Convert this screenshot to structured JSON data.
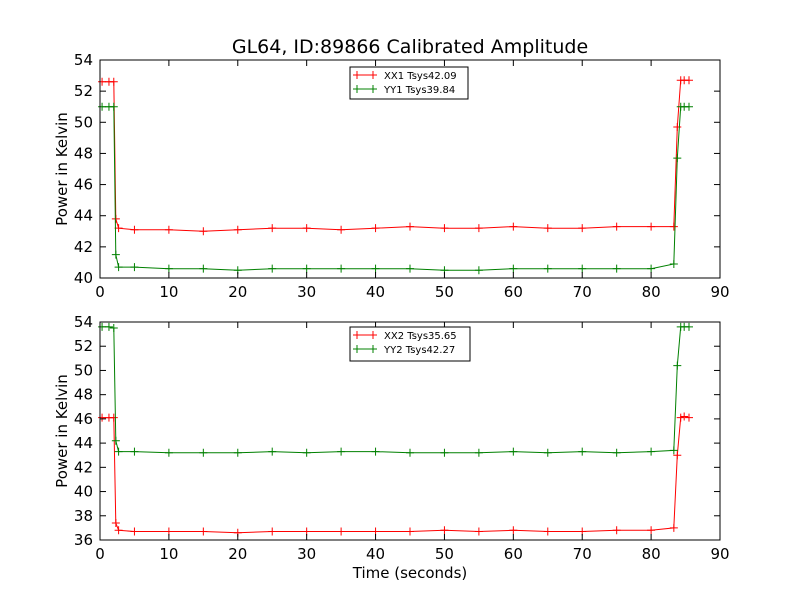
{
  "figure": {
    "title": "GL64, ID:89866 Calibrated Amplitude",
    "xlabel": "Time (seconds)"
  },
  "chart_data": [
    {
      "type": "line",
      "title": "GL64, ID:89866 Calibrated Amplitude",
      "xlabel": "",
      "ylabel": "Power in Kelvin",
      "xlim": [
        0,
        90
      ],
      "ylim": [
        40,
        54
      ],
      "xticks": [
        0,
        10,
        20,
        30,
        40,
        50,
        60,
        70,
        80,
        90
      ],
      "yticks": [
        40,
        42,
        44,
        46,
        48,
        50,
        52,
        54
      ],
      "grid": false,
      "legend_position": "top-center",
      "series": [
        {
          "name": "XX1 Tsys42.09",
          "color": "#ff0000",
          "marker": "plus",
          "x": [
            0.3,
            1.3,
            2.0,
            2.3,
            2.7,
            5,
            10,
            15,
            20,
            25,
            30,
            35,
            40,
            45,
            50,
            55,
            60,
            65,
            70,
            75,
            80,
            83.3,
            83.8,
            84.3,
            84.8,
            85.5
          ],
          "y": [
            52.6,
            52.6,
            52.6,
            43.8,
            43.2,
            43.1,
            43.1,
            43.0,
            43.1,
            43.2,
            43.2,
            43.1,
            43.2,
            43.3,
            43.2,
            43.2,
            43.3,
            43.2,
            43.2,
            43.3,
            43.3,
            43.3,
            49.7,
            52.7,
            52.7,
            52.7
          ]
        },
        {
          "name": "YY1 Tsys39.84",
          "color": "#008000",
          "marker": "plus",
          "x": [
            0.3,
            1.3,
            2.0,
            2.3,
            2.7,
            5,
            10,
            15,
            20,
            25,
            30,
            35,
            40,
            45,
            50,
            55,
            60,
            65,
            70,
            75,
            80,
            83.3,
            83.8,
            84.3,
            84.8,
            85.5
          ],
          "y": [
            51.0,
            51.0,
            51.0,
            41.5,
            40.7,
            40.7,
            40.6,
            40.6,
            40.5,
            40.6,
            40.6,
            40.6,
            40.6,
            40.6,
            40.5,
            40.5,
            40.6,
            40.6,
            40.6,
            40.6,
            40.6,
            40.9,
            47.7,
            51.0,
            51.0,
            51.0
          ]
        }
      ]
    },
    {
      "type": "line",
      "title": "",
      "xlabel": "Time (seconds)",
      "ylabel": "Power in Kelvin",
      "xlim": [
        0,
        90
      ],
      "ylim": [
        36,
        54
      ],
      "xticks": [
        0,
        10,
        20,
        30,
        40,
        50,
        60,
        70,
        80,
        90
      ],
      "yticks": [
        36,
        38,
        40,
        42,
        44,
        46,
        48,
        50,
        52,
        54
      ],
      "grid": false,
      "legend_position": "top-center",
      "series": [
        {
          "name": "XX2 Tsys35.65",
          "color": "#ff0000",
          "marker": "plus",
          "x": [
            0.3,
            1.3,
            2.0,
            2.3,
            2.7,
            5,
            10,
            15,
            20,
            25,
            30,
            35,
            40,
            45,
            50,
            55,
            60,
            65,
            70,
            75,
            80,
            83.3,
            83.8,
            84.3,
            84.8,
            85.5
          ],
          "y": [
            46.1,
            46.1,
            46.1,
            37.4,
            36.8,
            36.7,
            36.7,
            36.7,
            36.6,
            36.7,
            36.7,
            36.7,
            36.7,
            36.7,
            36.8,
            36.7,
            36.8,
            36.7,
            36.7,
            36.8,
            36.8,
            37.0,
            43.0,
            46.1,
            46.2,
            46.1
          ]
        },
        {
          "name": "YY2 Tsys42.27",
          "color": "#008000",
          "marker": "plus",
          "x": [
            0.3,
            1.3,
            2.0,
            2.3,
            2.7,
            5,
            10,
            15,
            20,
            25,
            30,
            35,
            40,
            45,
            50,
            55,
            60,
            65,
            70,
            75,
            80,
            83.3,
            83.8,
            84.3,
            84.8,
            85.5
          ],
          "y": [
            53.6,
            53.6,
            53.5,
            44.2,
            43.3,
            43.3,
            43.2,
            43.2,
            43.2,
            43.3,
            43.2,
            43.3,
            43.3,
            43.2,
            43.2,
            43.2,
            43.3,
            43.2,
            43.3,
            43.2,
            43.3,
            43.4,
            50.4,
            53.6,
            53.6,
            53.6
          ]
        }
      ]
    }
  ]
}
